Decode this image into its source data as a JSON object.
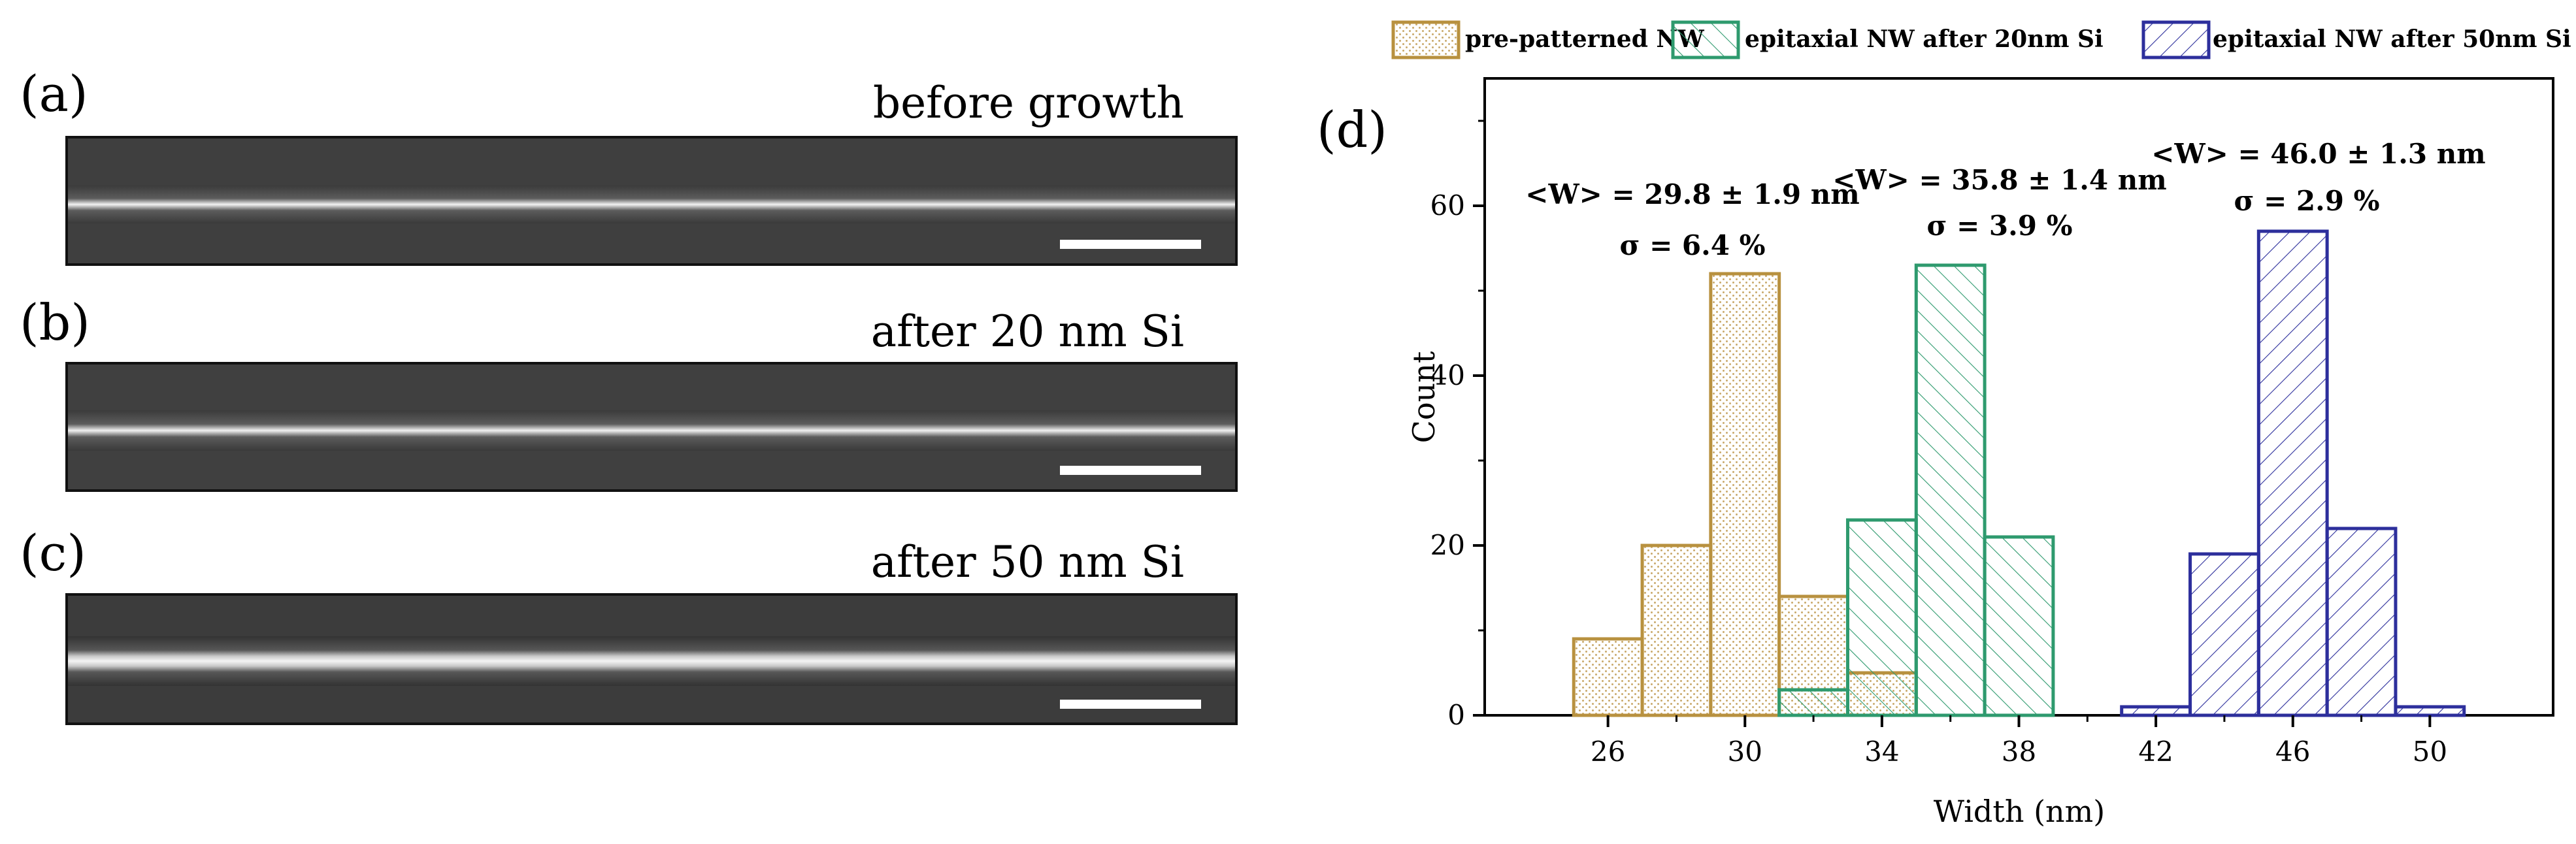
{
  "sem_panels": [
    {
      "label": "(a)",
      "caption": "before growth"
    },
    {
      "label": "(b)",
      "caption": "after 20 nm Si"
    },
    {
      "label": "(c)",
      "caption": "after 50 nm Si"
    }
  ],
  "chart_panel_label": "(d)",
  "colors": {
    "pre": "#b8913f",
    "nm20": "#2e9a6e",
    "nm50": "#2d2f9c"
  },
  "chart_data": {
    "type": "bar",
    "title": "",
    "xlabel": "Width (nm)",
    "ylabel": "Count",
    "xlim": [
      22.4,
      53.6
    ],
    "ylim": [
      0,
      75
    ],
    "xticks": [
      "26",
      "30",
      "34",
      "38",
      "42",
      "46",
      "50"
    ],
    "xtick_values": [
      26,
      30,
      34,
      38,
      42,
      46,
      50
    ],
    "yticks": [
      "0",
      "20",
      "40",
      "60"
    ],
    "ytick_values": [
      0,
      20,
      40,
      60
    ],
    "bin_width": 2,
    "legend_position": "top",
    "series": [
      {
        "name": "pre-patterned NW",
        "key": "pre",
        "pattern": "dots",
        "bins": [
          {
            "x": 26,
            "count": 9
          },
          {
            "x": 28,
            "count": 20
          },
          {
            "x": 30,
            "count": 52
          },
          {
            "x": 32,
            "count": 14
          },
          {
            "x": 34,
            "count": 5
          }
        ]
      },
      {
        "name": "epitaxial NW after 20nm Si",
        "key": "nm20",
        "pattern": "hatch-right",
        "bins": [
          {
            "x": 32,
            "count": 3
          },
          {
            "x": 34,
            "count": 23
          },
          {
            "x": 36,
            "count": 53
          },
          {
            "x": 38,
            "count": 21
          }
        ]
      },
      {
        "name": "epitaxial NW after 50nm Si",
        "key": "nm50",
        "pattern": "hatch-left",
        "bins": [
          {
            "x": 42,
            "count": 1
          },
          {
            "x": 44,
            "count": 19
          },
          {
            "x": 46,
            "count": 57
          },
          {
            "x": 48,
            "count": 22
          },
          {
            "x": 50,
            "count": 1
          }
        ]
      }
    ],
    "annotations": [
      {
        "mean": "<W> = 29.8 ± 1.9 nm",
        "sigma": "σ = 6.4 %"
      },
      {
        "mean": "<W> = 35.8 ± 1.4 nm",
        "sigma": "σ = 3.9 %"
      },
      {
        "mean": "<W> = 46.0 ± 1.3 nm",
        "sigma": "σ = 2.9 %"
      }
    ]
  }
}
